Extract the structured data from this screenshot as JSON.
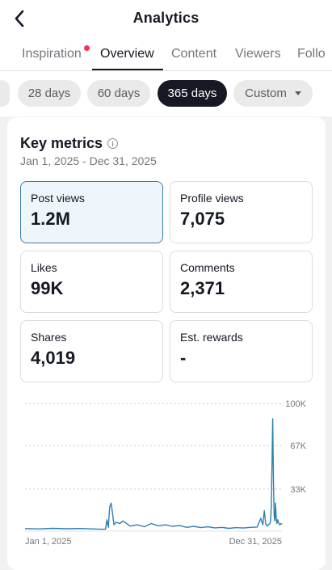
{
  "header": {
    "title": "Analytics"
  },
  "tabs": [
    {
      "label": "Inspiration",
      "has_dot": true
    },
    {
      "label": "Overview",
      "active": true
    },
    {
      "label": "Content"
    },
    {
      "label": "Viewers"
    },
    {
      "label": "Follo"
    }
  ],
  "ranges": [
    {
      "label": "28 days"
    },
    {
      "label": "60 days"
    },
    {
      "label": "365 days",
      "active": true
    },
    {
      "label": "Custom",
      "dropdown": true
    }
  ],
  "key_metrics": {
    "title": "Key metrics",
    "date_range": "Jan 1, 2025 - Dec 31, 2025",
    "items": [
      {
        "label": "Post views",
        "value": "1.2M",
        "selected": true
      },
      {
        "label": "Profile views",
        "value": "7,075"
      },
      {
        "label": "Likes",
        "value": "99K"
      },
      {
        "label": "Comments",
        "value": "2,371"
      },
      {
        "label": "Shares",
        "value": "4,019"
      },
      {
        "label": "Est. rewards",
        "value": "-"
      }
    ]
  },
  "colors": {
    "accent": "#3a7ea6",
    "line": "#2f7fb3",
    "active_pill": "#161823",
    "dot": "#fe2c55"
  },
  "chart_data": {
    "type": "line",
    "x_tick_labels": [
      "Jan 1, 2025",
      "Dec 31, 2025"
    ],
    "y_tick_labels": [
      "100K",
      "67K",
      "33K"
    ],
    "ylim": [
      0,
      100000
    ],
    "grid": true,
    "series": [
      {
        "x": [
          1,
          20,
          40,
          60,
          80,
          100,
          115,
          117,
          119,
          121,
          123,
          125,
          127,
          130,
          135,
          140,
          150,
          160,
          170,
          180,
          190,
          200,
          210,
          220,
          230,
          240,
          250,
          260,
          270,
          280,
          290,
          300,
          310,
          320,
          330,
          335,
          338,
          340,
          342,
          344,
          346,
          348,
          349,
          350,
          351,
          352,
          353,
          354,
          355,
          356,
          357,
          358,
          359,
          360,
          362,
          364,
          365
        ],
        "y": [
          2000,
          1800,
          2200,
          1900,
          2100,
          1700,
          1500,
          9000,
          3000,
          19000,
          22000,
          14000,
          5000,
          7000,
          6000,
          8000,
          4000,
          5000,
          3500,
          6000,
          4200,
          5000,
          3800,
          4500,
          3000,
          3800,
          2800,
          3500,
          2600,
          3000,
          2200,
          2800,
          2500,
          3000,
          3200,
          10000,
          5000,
          16000,
          6000,
          4000,
          5000,
          6000,
          8000,
          20000,
          55000,
          88000,
          40000,
          12000,
          8000,
          22000,
          10000,
          6000,
          9000,
          7000,
          5000,
          6000,
          5500
        ]
      }
    ]
  }
}
